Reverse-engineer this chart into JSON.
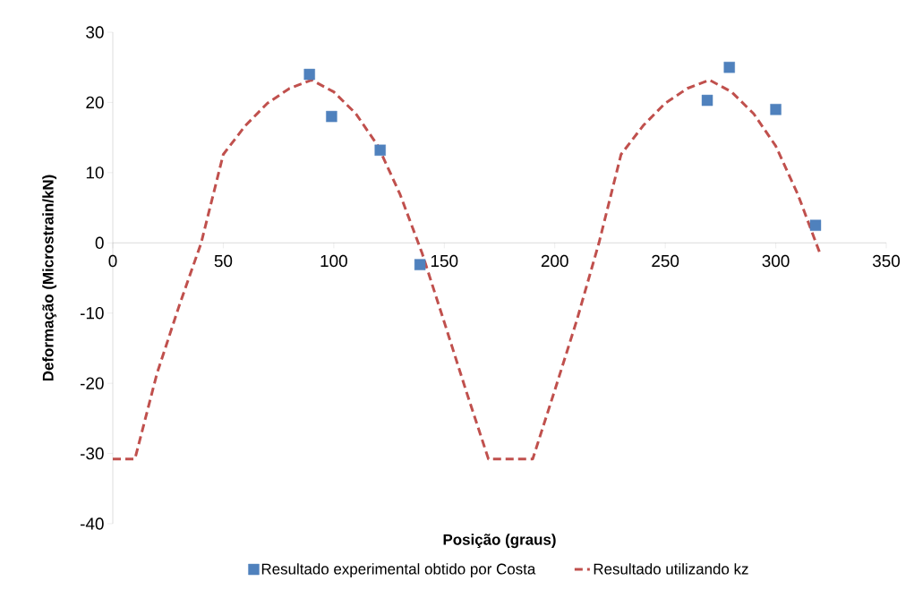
{
  "chart_data": {
    "type": "scatter",
    "xlabel": "Posição (graus)",
    "ylabel": "Deformação (Microstrain/kN)",
    "xlim": [
      0,
      350
    ],
    "xticks": [
      0,
      50,
      100,
      150,
      200,
      250,
      300,
      350
    ],
    "ylim": [
      -40,
      30
    ],
    "yticks": [
      -40,
      -30,
      -20,
      -10,
      0,
      10,
      20,
      30
    ],
    "grid": false,
    "legend": "bottom",
    "series": [
      {
        "name": "Resultado experimental obtido por Costa",
        "marker": "square",
        "color": "#4f81bd",
        "x": [
          89,
          99,
          121,
          139,
          269,
          279,
          300,
          318
        ],
        "values": [
          24,
          18,
          13.2,
          -3.1,
          20.3,
          25,
          19,
          2.5
        ]
      },
      {
        "name": "Resultado utilizando kz",
        "type": "line",
        "marker": "none",
        "line_style": "dashed",
        "color": "#c0504d",
        "x": [
          0,
          10,
          20,
          30,
          40,
          50,
          60,
          70,
          80,
          90,
          100,
          110,
          120,
          130,
          140,
          150,
          160,
          170,
          180,
          190,
          200,
          210,
          220,
          230,
          240,
          250,
          260,
          270,
          280,
          290,
          300,
          310,
          320
        ],
        "values": [
          -30.8,
          -30.8,
          -18.6,
          -9,
          0,
          12.6,
          16.7,
          19.9,
          22,
          23.2,
          21.5,
          18.4,
          13.8,
          6.9,
          -1.5,
          -11.3,
          -21.2,
          -30.8,
          -30.8,
          -30.8,
          -21,
          -11,
          0,
          12.6,
          16.7,
          19.9,
          22,
          23.2,
          21.5,
          18.4,
          13.8,
          6.9,
          -1.5
        ]
      }
    ]
  }
}
